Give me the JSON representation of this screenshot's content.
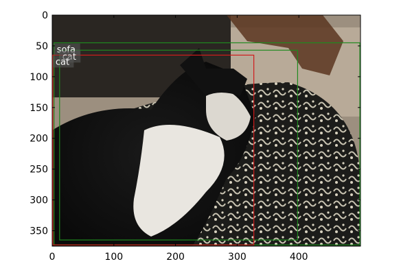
{
  "chart_data": {
    "type": "image_with_annotations",
    "image_extent": {
      "width": 500,
      "height": 375
    },
    "x_ticks": [
      0,
      100,
      200,
      300,
      400
    ],
    "y_ticks": [
      0,
      50,
      100,
      150,
      200,
      250,
      300,
      350
    ],
    "boxes": [
      {
        "label": "sofa",
        "color": "#1f8a1f",
        "x0": 3,
        "y0": 45,
        "x1": 499,
        "y1": 373,
        "label_at": "top-left"
      },
      {
        "label": "cat",
        "color": "#1f8a1f",
        "x0": 12,
        "y0": 57,
        "x1": 398,
        "y1": 365,
        "label_at": "top-left"
      },
      {
        "label": "cat",
        "color": "#d01c1c",
        "x0": 1,
        "y0": 65,
        "x1": 327,
        "y1": 373,
        "label_at": "top-left"
      }
    ],
    "grid": false
  }
}
